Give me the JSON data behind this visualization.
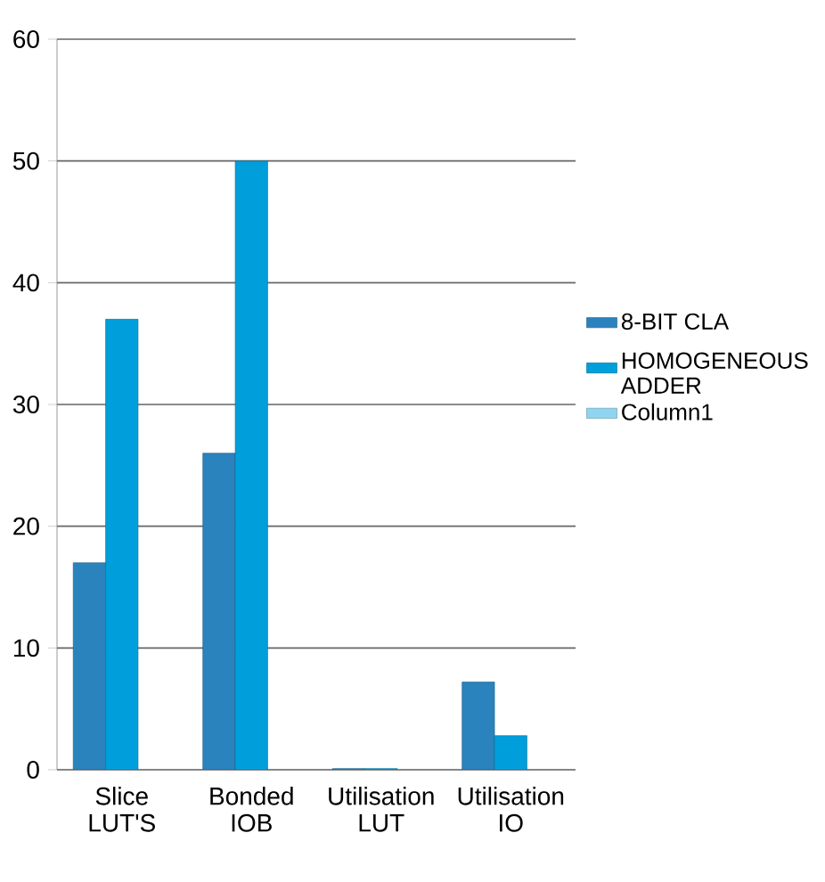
{
  "chart_data": {
    "type": "bar",
    "categories": [
      "Slice LUT'S",
      "Bonded IOB",
      "Utilisation LUT",
      "Utilisation IO"
    ],
    "series": [
      {
        "name": "8-BIT CLA",
        "color": "#2a83bd",
        "values": [
          17,
          26,
          0.1,
          7.2
        ]
      },
      {
        "name": "HOMOGENEOUS ADDER",
        "color": "#009fdb",
        "values": [
          37,
          50,
          0.1,
          2.8
        ]
      },
      {
        "name": "Column1",
        "color": "#8fd4f0",
        "values": [
          null,
          null,
          null,
          null
        ]
      }
    ],
    "ylim": [
      0,
      60
    ],
    "yticks": [
      0,
      10,
      20,
      30,
      40,
      50,
      60
    ],
    "grid": "y",
    "legend": "right"
  }
}
